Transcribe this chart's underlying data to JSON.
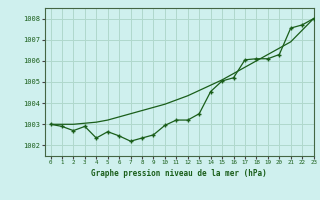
{
  "xlabel": "Graphe pression niveau de la mer (hPa)",
  "bg_color": "#cff0ee",
  "grid_color": "#b0d8cc",
  "line_color": "#1a5e1a",
  "xlim": [
    -0.5,
    23
  ],
  "ylim": [
    1001.5,
    1008.5
  ],
  "yticks": [
    1002,
    1003,
    1004,
    1005,
    1006,
    1007,
    1008
  ],
  "xticks": [
    0,
    1,
    2,
    3,
    4,
    5,
    6,
    7,
    8,
    9,
    10,
    11,
    12,
    13,
    14,
    15,
    16,
    17,
    18,
    19,
    20,
    21,
    22,
    23
  ],
  "smooth_line": [
    [
      0,
      1003.0
    ],
    [
      1,
      1003.0
    ],
    [
      2,
      1003.0
    ],
    [
      3,
      1003.05
    ],
    [
      4,
      1003.1
    ],
    [
      5,
      1003.2
    ],
    [
      6,
      1003.35
    ],
    [
      7,
      1003.5
    ],
    [
      8,
      1003.65
    ],
    [
      9,
      1003.8
    ],
    [
      10,
      1003.95
    ],
    [
      11,
      1004.15
    ],
    [
      12,
      1004.35
    ],
    [
      13,
      1004.6
    ],
    [
      14,
      1004.85
    ],
    [
      15,
      1005.1
    ],
    [
      16,
      1005.4
    ],
    [
      17,
      1005.7
    ],
    [
      18,
      1006.0
    ],
    [
      19,
      1006.3
    ],
    [
      20,
      1006.6
    ],
    [
      21,
      1006.9
    ],
    [
      22,
      1007.45
    ],
    [
      23,
      1008.0
    ]
  ],
  "marker_line": [
    [
      0,
      1003.0
    ],
    [
      1,
      1002.9
    ],
    [
      2,
      1002.7
    ],
    [
      3,
      1002.9
    ],
    [
      4,
      1002.35
    ],
    [
      5,
      1002.65
    ],
    [
      6,
      1002.45
    ],
    [
      7,
      1002.2
    ],
    [
      8,
      1002.35
    ],
    [
      9,
      1002.5
    ],
    [
      10,
      1002.95
    ],
    [
      11,
      1003.2
    ],
    [
      12,
      1003.2
    ],
    [
      13,
      1003.5
    ],
    [
      14,
      1004.55
    ],
    [
      15,
      1005.05
    ],
    [
      16,
      1005.2
    ],
    [
      17,
      1006.05
    ],
    [
      18,
      1006.1
    ],
    [
      19,
      1006.1
    ],
    [
      20,
      1006.3
    ],
    [
      21,
      1007.55
    ],
    [
      22,
      1007.7
    ],
    [
      23,
      1008.0
    ]
  ]
}
